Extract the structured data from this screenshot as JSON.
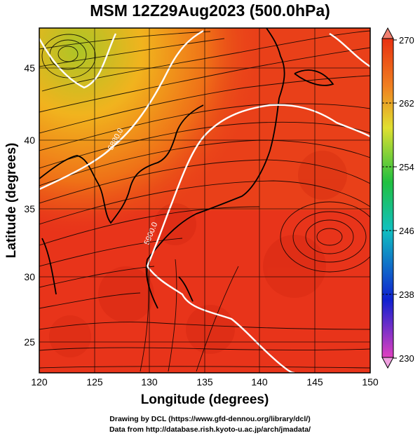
{
  "title": "MSM 12Z29Aug2023 (500.0hPa)",
  "x_axis": {
    "label": "Longitude (degrees)",
    "range": [
      120,
      150
    ],
    "ticks": [
      "120",
      "125",
      "130",
      "135",
      "140",
      "145",
      "150"
    ]
  },
  "y_axis": {
    "label": "Latitude  (degrees)",
    "range": [
      22.4,
      47.6
    ],
    "ticks": [
      "25",
      "30",
      "35",
      "40",
      "45"
    ]
  },
  "colorbar": {
    "ticks": [
      "230",
      "238",
      "246",
      "254",
      "262",
      "270"
    ],
    "colors": [
      "#e040c0",
      "#1020d0",
      "#10c0c0",
      "#20c040",
      "#e0e030",
      "#f08020",
      "#e83010"
    ]
  },
  "contour_labels": [
    "5880.0",
    "5900.0"
  ],
  "colors": {
    "field_hot": "#e8341a",
    "field_warm": "#f2a020",
    "field_cool": "#9ed62a",
    "contour": "#ffffff",
    "streamline": "#000000"
  },
  "credits": {
    "line1": "Drawing by DCL (https://www.gfd-dennou.org/library/dcl/)",
    "line2": "Data from http://database.rish.kyoto-u.ac.jp/arch/jmadata/"
  }
}
